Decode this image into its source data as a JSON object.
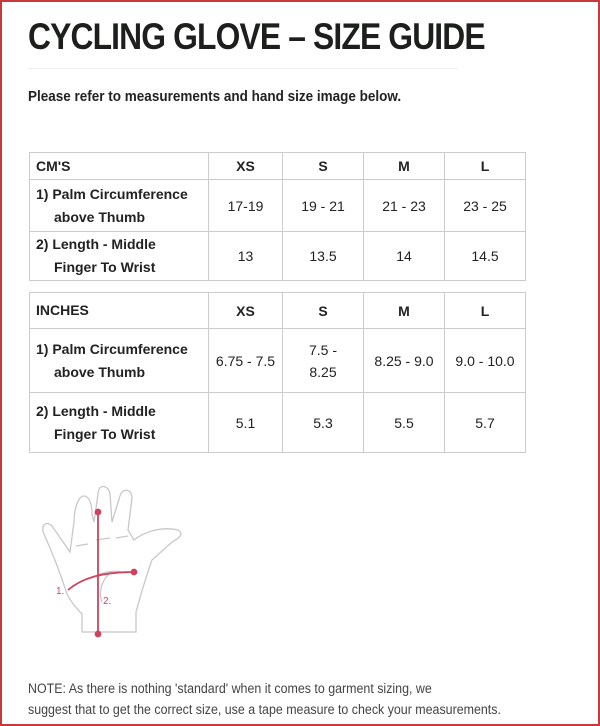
{
  "title": "CYCLING GLOVE – SIZE GUIDE",
  "intro": "Please refer to measurements and hand size image below.",
  "cm_table": {
    "header": [
      "CM'S",
      "XS",
      "S",
      "M",
      "L"
    ],
    "rows": [
      {
        "label1": "1) Palm Circumference",
        "label2": "above Thumb",
        "values": [
          "17-19",
          "19 - 21",
          "21 - 23",
          "23 - 25"
        ]
      },
      {
        "label1": "2) Length - Middle",
        "label2": "Finger To Wrist",
        "values": [
          "13",
          "13.5",
          "14",
          "14.5"
        ]
      }
    ]
  },
  "inch_table": {
    "header": [
      "INCHES",
      "XS",
      "S",
      "M",
      "L"
    ],
    "rows": [
      {
        "label1": "1) Palm Circumference",
        "label2": "above Thumb",
        "values": [
          "6.75 - 7.5",
          "7.5 - 8.25",
          "8.25 - 9.0",
          "9.0 - 10.0"
        ]
      },
      {
        "label1": "2) Length - Middle",
        "label2": "Finger To Wrist",
        "values": [
          "5.1",
          "5.3",
          "5.5",
          "5.7"
        ]
      }
    ]
  },
  "diagram": {
    "label1": "1.",
    "label2": "2.",
    "accent": "#d0435e"
  },
  "note": {
    "line1": "NOTE: As there is nothing 'standard' when it comes to garment sizing, we",
    "line2": "suggest that to get the correct size, use a tape measure to check your measurements."
  }
}
